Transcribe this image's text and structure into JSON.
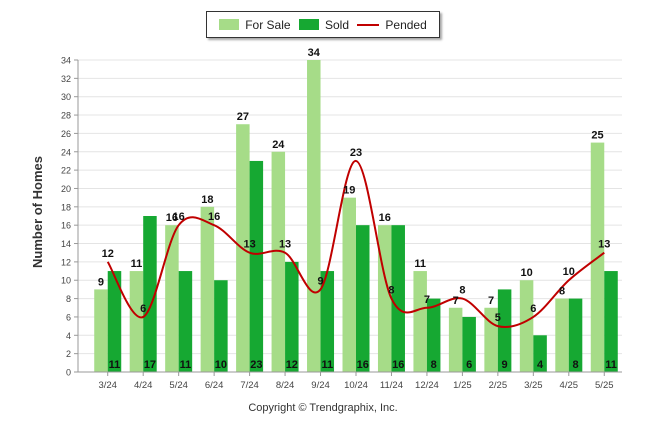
{
  "legend": {
    "for_sale": "For Sale",
    "sold": "Sold",
    "pended": "Pended"
  },
  "copyright": "Copyright © Trendgraphix, Inc.",
  "colors": {
    "for_sale": "#a6dc88",
    "sold": "#16a832",
    "pended": "#c00000",
    "grid": "#e4e4e4"
  },
  "chart_data": {
    "type": "bar",
    "ylabel": "Number of Homes",
    "xlabel": "",
    "ylim": [
      0,
      34
    ],
    "yticks": [
      0,
      2,
      4,
      6,
      8,
      10,
      12,
      14,
      16,
      18,
      20,
      22,
      24,
      26,
      28,
      30,
      32,
      34
    ],
    "grid": true,
    "legend_position": "top-center",
    "categories": [
      "3/24",
      "4/24",
      "5/24",
      "6/24",
      "7/24",
      "8/24",
      "9/24",
      "10/24",
      "11/24",
      "12/24",
      "1/25",
      "2/25",
      "3/25",
      "4/25",
      "5/25"
    ],
    "series": [
      {
        "name": "For Sale",
        "kind": "bar",
        "values": [
          9,
          11,
          16,
          18,
          27,
          24,
          34,
          19,
          16,
          11,
          7,
          7,
          10,
          8,
          25
        ]
      },
      {
        "name": "Sold",
        "kind": "bar",
        "values": [
          11,
          17,
          11,
          10,
          23,
          12,
          11,
          16,
          16,
          8,
          6,
          9,
          4,
          8,
          11
        ]
      },
      {
        "name": "Pended",
        "kind": "line",
        "values": [
          12,
          6,
          16,
          16,
          13,
          13,
          9,
          23,
          8,
          7,
          8,
          5,
          6,
          10,
          13
        ]
      }
    ]
  }
}
